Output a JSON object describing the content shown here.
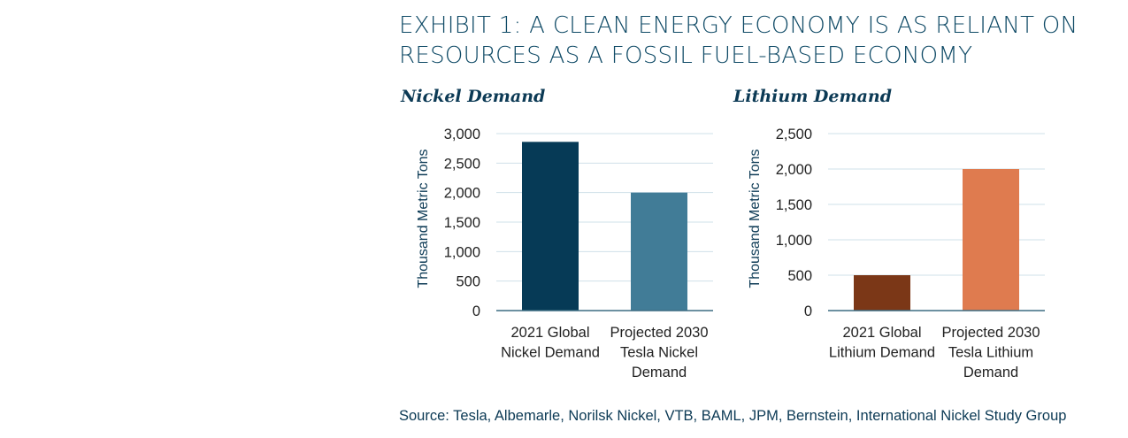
{
  "title_lines": [
    "EXHIBIT 1: A CLEAN ENERGY ECONOMY IS AS RELIANT ON",
    "RESOURCES AS A FOSSIL FUEL-BASED ECONOMY"
  ],
  "source": "Source: Tesla, Albemarle, Norilsk Nickel, VTB, BAML, JPM, Bernstein, International Nickel Study Group",
  "colors": {
    "nickel_2021": "#063a56",
    "nickel_2030": "#417c97",
    "lithium_2021": "#7b3717",
    "lithium_2030": "#df7b4f",
    "grid": "#cfe1e8",
    "axis": "#3d6d82",
    "text": "#222222",
    "ylabel": "#0c3a55"
  },
  "chart_data": [
    {
      "type": "bar",
      "title": "Nickel Demand",
      "ylabel": "Thousand Metric Tons",
      "ylim": [
        0,
        3000
      ],
      "yticks": [
        0,
        500,
        1000,
        1500,
        2000,
        2500,
        3000
      ],
      "ytick_labels": [
        "0",
        "500",
        "1,000",
        "1,500",
        "2,000",
        "2,500",
        "3,000"
      ],
      "grid": true,
      "categories": [
        [
          "2021 Global",
          "Nickel Demand"
        ],
        [
          "Projected 2030",
          "Tesla Nickel",
          "Demand"
        ]
      ],
      "values": [
        2860,
        2000
      ]
    },
    {
      "type": "bar",
      "title": "Lithium Demand",
      "ylabel": "Thousand Metric Tons",
      "ylim": [
        0,
        2500
      ],
      "yticks": [
        0,
        500,
        1000,
        1500,
        2000,
        2500
      ],
      "ytick_labels": [
        "0",
        "500",
        "1,000",
        "1,500",
        "2,000",
        "2,500"
      ],
      "grid": true,
      "categories": [
        [
          "2021 Global",
          "Lithium Demand"
        ],
        [
          "Projected 2030",
          "Tesla Lithium",
          "Demand"
        ]
      ],
      "values": [
        500,
        2000
      ]
    }
  ]
}
